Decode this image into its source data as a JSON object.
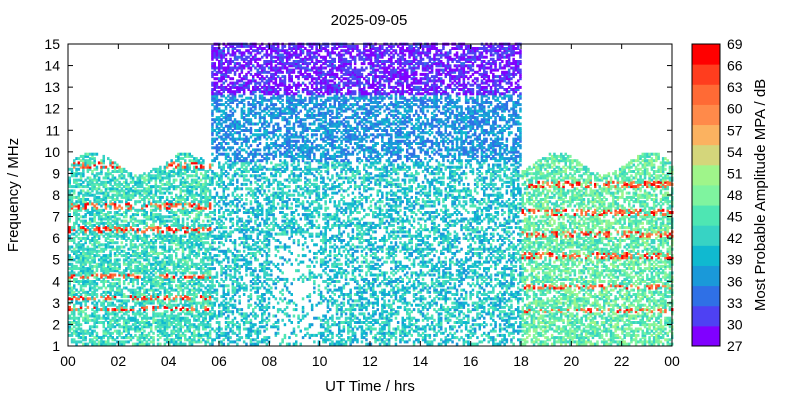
{
  "chart_data": {
    "type": "heatmap",
    "title": "2025-09-05",
    "xlabel": "UT Time / hrs",
    "ylabel": "Frequency / MHz",
    "xlim": [
      0,
      24
    ],
    "ylim": [
      1,
      15
    ],
    "x_ticks": [
      "00",
      "02",
      "04",
      "06",
      "08",
      "10",
      "12",
      "14",
      "16",
      "18",
      "20",
      "22",
      "00"
    ],
    "y_ticks": [
      "1",
      "2",
      "3",
      "4",
      "5",
      "6",
      "7",
      "8",
      "9",
      "10",
      "11",
      "12",
      "13",
      "14",
      "15"
    ],
    "colorbar": {
      "label": "Most Probable Amplitude MPA / dB",
      "range": [
        27,
        69
      ],
      "ticks": [
        "27",
        "30",
        "33",
        "36",
        "39",
        "42",
        "45",
        "48",
        "51",
        "54",
        "57",
        "60",
        "63",
        "66",
        "69"
      ],
      "colors": [
        "#8000ff",
        "#4e41f3",
        "#2f70e6",
        "#1a99d9",
        "#10b9d0",
        "#37d3c4",
        "#4ee6b3",
        "#7ff49f",
        "#9ff58a",
        "#d4d67b",
        "#fbb260",
        "#ff8a4a",
        "#ff6a35",
        "#ff3d1e",
        "#ff0000"
      ]
    },
    "regions": [
      {
        "hours": [
          0,
          5.6
        ],
        "freq_MHz": [
          1,
          10
        ],
        "typical_dB": "39-45",
        "notes": "strong bands (60-69 dB) near 2.7, 3.2, 4.2, 6.3, 7.4, 9.3 MHz"
      },
      {
        "hours": [
          5.6,
          18
        ],
        "freq_MHz": [
          1,
          15
        ],
        "typical_dB": "33-42",
        "notes": "27-30 dB near 13-15 MHz; 36-39 dB at 10-13 MHz"
      },
      {
        "hours": [
          18,
          24
        ],
        "freq_MHz": [
          1,
          10
        ],
        "typical_dB": "42-51",
        "notes": "strong bands (60-69 dB) near 2.6, 3.7, 5.1, 6.1, 7.1, 8.4 MHz"
      }
    ]
  }
}
